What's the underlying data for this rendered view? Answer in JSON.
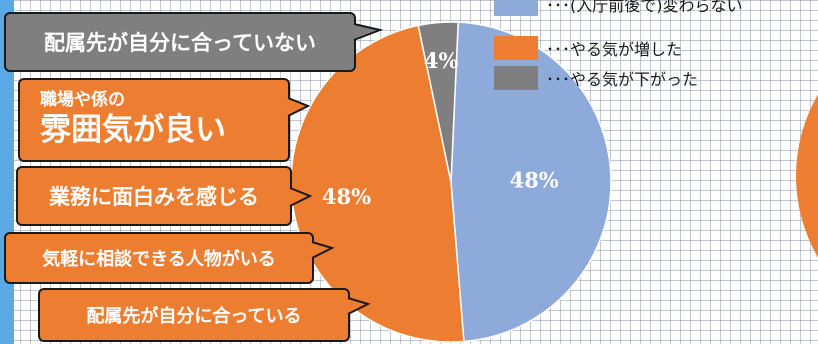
{
  "callouts": {
    "c1": "配属先が自分に合っていない",
    "c2_line1": "職場や係の",
    "c2_line2": "雰囲気が良い",
    "c3": "業務に面白みを感じる",
    "c4": "気軽に相談できる人物がいる",
    "c5": "配属先が自分に合っている"
  },
  "chart_data": {
    "type": "pie",
    "categories": [
      "･･･(入庁前後で)変わらない",
      "･･･やる気が増した",
      "･･･やる気が下がった"
    ],
    "values": [
      48,
      48,
      4
    ],
    "labels": [
      "48%",
      "48%",
      "4%"
    ],
    "colors": [
      "#8eaadb",
      "#ed7d31",
      "#7f7f7f"
    ],
    "legend_position": "top-right"
  },
  "partial_chart_colors": [
    "#a9d18e",
    "#ed7d31"
  ]
}
